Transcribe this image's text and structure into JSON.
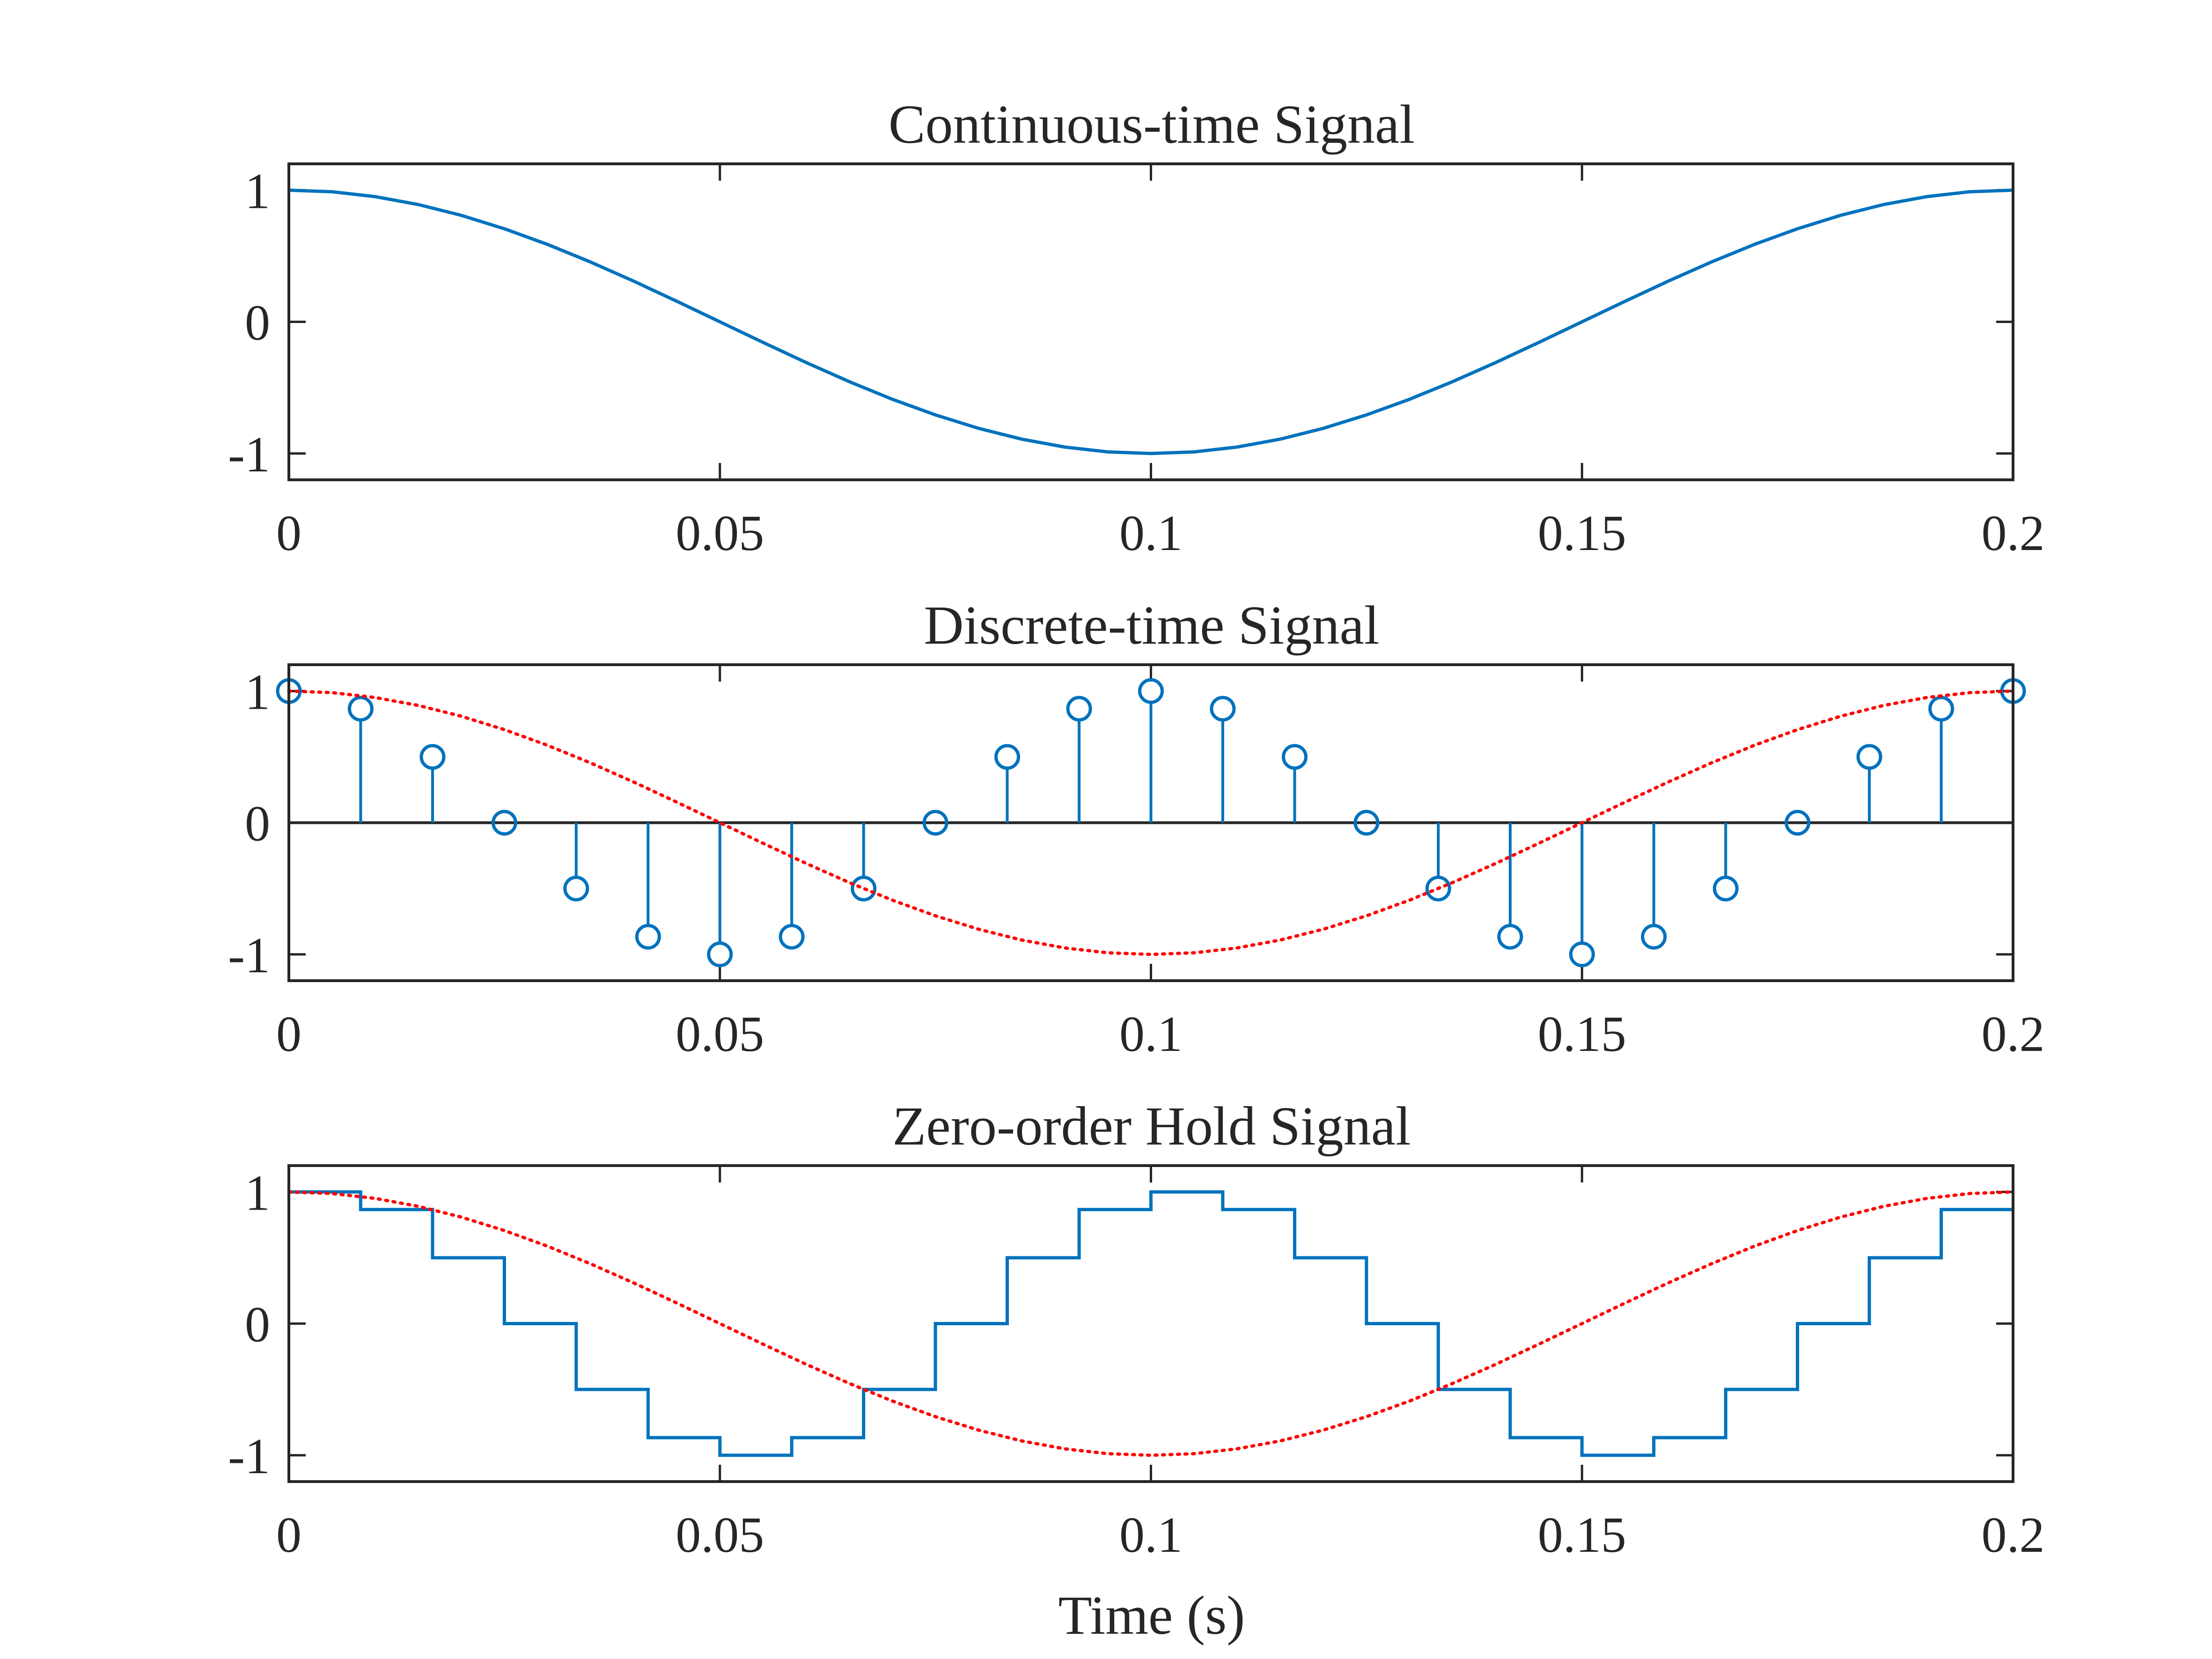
{
  "colors": {
    "signal": "#0072bd",
    "reference": "#ff0000",
    "axes": "#262626",
    "baseline": "#262626",
    "background": "#ffffff"
  },
  "chart_data": [
    {
      "type": "line",
      "title": "Continuous-time Signal",
      "xlabel": "",
      "ylabel": "",
      "xlim": [
        0,
        0.2
      ],
      "ylim": [
        -1.2,
        1.2
      ],
      "xticks": [
        "0",
        "0.05",
        "0.1",
        "0.15",
        "0.2"
      ],
      "xtick_values": [
        0,
        0.05,
        0.1,
        0.15,
        0.2
      ],
      "yticks": [
        "-1",
        "0",
        "1"
      ],
      "ytick_values": [
        -1,
        0,
        1
      ],
      "grid": false,
      "series": [
        {
          "style": "solid",
          "color": "#0072bd",
          "x": [
            0,
            0.005,
            0.01,
            0.015,
            0.02,
            0.025,
            0.03,
            0.035,
            0.04,
            0.045,
            0.05,
            0.055,
            0.06,
            0.065,
            0.07,
            0.075,
            0.08,
            0.085,
            0.09,
            0.095,
            0.1,
            0.105,
            0.11,
            0.115,
            0.12,
            0.125,
            0.13,
            0.135,
            0.14,
            0.145,
            0.15,
            0.155,
            0.16,
            0.165,
            0.17,
            0.175,
            0.18,
            0.185,
            0.19,
            0.195,
            0.2
          ],
          "y": [
            1,
            0.988,
            0.951,
            0.891,
            0.809,
            0.707,
            0.588,
            0.454,
            0.309,
            0.156,
            0,
            -0.156,
            -0.309,
            -0.454,
            -0.588,
            -0.707,
            -0.809,
            -0.891,
            -0.951,
            -0.988,
            -1,
            -0.988,
            -0.951,
            -0.891,
            -0.809,
            -0.707,
            -0.588,
            -0.454,
            -0.309,
            -0.156,
            0,
            0.156,
            0.309,
            0.454,
            0.588,
            0.707,
            0.809,
            0.891,
            0.951,
            0.988,
            1
          ]
        }
      ]
    },
    {
      "type": "stem",
      "title": "Discrete-time Signal",
      "xlabel": "",
      "ylabel": "",
      "xlim": [
        0,
        0.2
      ],
      "ylim": [
        -1.2,
        1.2
      ],
      "xticks": [
        "0",
        "0.05",
        "0.1",
        "0.15",
        "0.2"
      ],
      "xtick_values": [
        0,
        0.05,
        0.1,
        0.15,
        0.2
      ],
      "yticks": [
        "-1",
        "0",
        "1"
      ],
      "ytick_values": [
        -1,
        0,
        1
      ],
      "grid": false,
      "series": [
        {
          "style": "stem",
          "color": "#0072bd",
          "x": [
            0,
            0.00833,
            0.01667,
            0.025,
            0.03333,
            0.04167,
            0.05,
            0.05833,
            0.06667,
            0.075,
            0.08333,
            0.09167,
            0.1,
            0.10833,
            0.11667,
            0.125,
            0.13333,
            0.14167,
            0.15,
            0.15833,
            0.16667,
            0.175,
            0.18333,
            0.19167,
            0.2
          ],
          "y": [
            1,
            0.866,
            0.5,
            0,
            -0.5,
            -0.866,
            -1,
            -0.866,
            -0.5,
            0,
            0.5,
            0.866,
            1,
            0.866,
            0.5,
            0,
            -0.5,
            -0.866,
            -1,
            -0.866,
            -0.5,
            0,
            0.5,
            0.866,
            1
          ]
        },
        {
          "style": "dotted",
          "color": "#ff0000",
          "x": [
            0,
            0.005,
            0.01,
            0.015,
            0.02,
            0.025,
            0.03,
            0.035,
            0.04,
            0.045,
            0.05,
            0.055,
            0.06,
            0.065,
            0.07,
            0.075,
            0.08,
            0.085,
            0.09,
            0.095,
            0.1,
            0.105,
            0.11,
            0.115,
            0.12,
            0.125,
            0.13,
            0.135,
            0.14,
            0.145,
            0.15,
            0.155,
            0.16,
            0.165,
            0.17,
            0.175,
            0.18,
            0.185,
            0.19,
            0.195,
            0.2
          ],
          "y": [
            1,
            0.988,
            0.951,
            0.891,
            0.809,
            0.707,
            0.588,
            0.454,
            0.309,
            0.156,
            0,
            -0.156,
            -0.309,
            -0.454,
            -0.588,
            -0.707,
            -0.809,
            -0.891,
            -0.951,
            -0.988,
            -1,
            -0.988,
            -0.951,
            -0.891,
            -0.809,
            -0.707,
            -0.588,
            -0.454,
            -0.309,
            -0.156,
            0,
            0.156,
            0.309,
            0.454,
            0.588,
            0.707,
            0.809,
            0.891,
            0.951,
            0.988,
            1
          ]
        }
      ]
    },
    {
      "type": "line",
      "title": "Zero-order Hold Signal",
      "xlabel": "Time (s)",
      "ylabel": "",
      "xlim": [
        0,
        0.2
      ],
      "ylim": [
        -1.2,
        1.2
      ],
      "xticks": [
        "0",
        "0.05",
        "0.1",
        "0.15",
        "0.2"
      ],
      "xtick_values": [
        0,
        0.05,
        0.1,
        0.15,
        0.2
      ],
      "yticks": [
        "-1",
        "0",
        "1"
      ],
      "ytick_values": [
        -1,
        0,
        1
      ],
      "grid": false,
      "series": [
        {
          "style": "step",
          "color": "#0072bd",
          "x": [
            0,
            0.00833,
            0.01667,
            0.025,
            0.03333,
            0.04167,
            0.05,
            0.05833,
            0.06667,
            0.075,
            0.08333,
            0.09167,
            0.1,
            0.10833,
            0.11667,
            0.125,
            0.13333,
            0.14167,
            0.15,
            0.15833,
            0.16667,
            0.175,
            0.18333,
            0.19167,
            0.2
          ],
          "y": [
            1,
            0.866,
            0.5,
            0,
            -0.5,
            -0.866,
            -1,
            -0.866,
            -0.5,
            0,
            0.5,
            0.866,
            1,
            0.866,
            0.5,
            0,
            -0.5,
            -0.866,
            -1,
            -0.866,
            -0.5,
            0,
            0.5,
            0.866,
            0.866
          ]
        },
        {
          "style": "dotted",
          "color": "#ff0000",
          "x": [
            0,
            0.005,
            0.01,
            0.015,
            0.02,
            0.025,
            0.03,
            0.035,
            0.04,
            0.045,
            0.05,
            0.055,
            0.06,
            0.065,
            0.07,
            0.075,
            0.08,
            0.085,
            0.09,
            0.095,
            0.1,
            0.105,
            0.11,
            0.115,
            0.12,
            0.125,
            0.13,
            0.135,
            0.14,
            0.145,
            0.15,
            0.155,
            0.16,
            0.165,
            0.17,
            0.175,
            0.18,
            0.185,
            0.19,
            0.195,
            0.2
          ],
          "y": [
            1,
            0.988,
            0.951,
            0.891,
            0.809,
            0.707,
            0.588,
            0.454,
            0.309,
            0.156,
            0,
            -0.156,
            -0.309,
            -0.454,
            -0.588,
            -0.707,
            -0.809,
            -0.891,
            -0.951,
            -0.988,
            -1,
            -0.988,
            -0.951,
            -0.891,
            -0.809,
            -0.707,
            -0.588,
            -0.454,
            -0.309,
            -0.156,
            0,
            0.156,
            0.309,
            0.454,
            0.588,
            0.707,
            0.809,
            0.891,
            0.951,
            0.988,
            1
          ]
        }
      ]
    }
  ]
}
